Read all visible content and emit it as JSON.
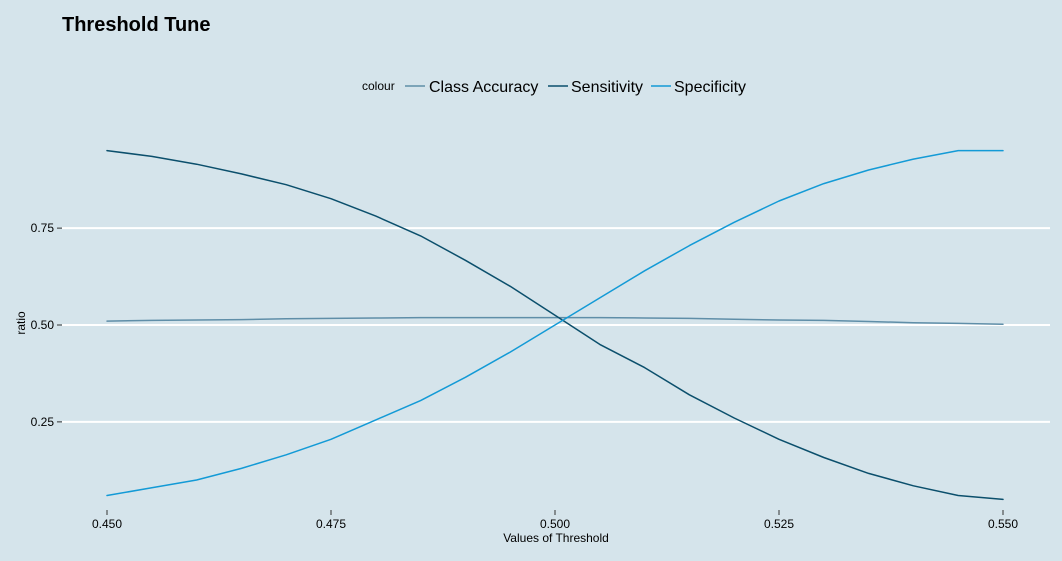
{
  "chart_data": {
    "type": "line",
    "title": "Threshold Tune",
    "xlabel": "Values of Threshold",
    "ylabel": "ratio",
    "xlim": [
      0.45,
      0.55
    ],
    "ylim": [
      0.035,
      0.98
    ],
    "x_ticks": [
      0.45,
      0.475,
      0.5,
      0.525,
      0.55
    ],
    "x_tick_labels": [
      "0.450",
      "0.475",
      "0.500",
      "0.525",
      "0.550"
    ],
    "y_ticks": [
      0.25,
      0.5,
      0.75
    ],
    "y_tick_labels": [
      "0.25",
      "0.50",
      "0.75"
    ],
    "grid": "horizontal",
    "legend": {
      "title": "colour",
      "position": "top"
    },
    "x": [
      0.45,
      0.455,
      0.46,
      0.465,
      0.47,
      0.475,
      0.48,
      0.485,
      0.49,
      0.495,
      0.5,
      0.505,
      0.51,
      0.515,
      0.52,
      0.525,
      0.53,
      0.535,
      0.54,
      0.545,
      0.55
    ],
    "series": [
      {
        "name": "Class Accuracy",
        "color": "#5f8ea8",
        "values": [
          0.51,
          0.512,
          0.513,
          0.514,
          0.516,
          0.517,
          0.518,
          0.519,
          0.519,
          0.519,
          0.519,
          0.519,
          0.518,
          0.517,
          0.515,
          0.513,
          0.512,
          0.509,
          0.506,
          0.504,
          0.502
        ]
      },
      {
        "name": "Sensitivity",
        "color": "#0b4f6c",
        "values": [
          0.95,
          0.935,
          0.915,
          0.89,
          0.862,
          0.826,
          0.781,
          0.73,
          0.667,
          0.6,
          0.525,
          0.45,
          0.39,
          0.32,
          0.26,
          0.205,
          0.158,
          0.117,
          0.085,
          0.06,
          0.05
        ]
      },
      {
        "name": "Specificity",
        "color": "#139ad6",
        "values": [
          0.06,
          0.08,
          0.1,
          0.13,
          0.165,
          0.205,
          0.255,
          0.305,
          0.365,
          0.43,
          0.5,
          0.57,
          0.64,
          0.705,
          0.765,
          0.82,
          0.865,
          0.9,
          0.928,
          0.95,
          0.95
        ]
      }
    ]
  }
}
